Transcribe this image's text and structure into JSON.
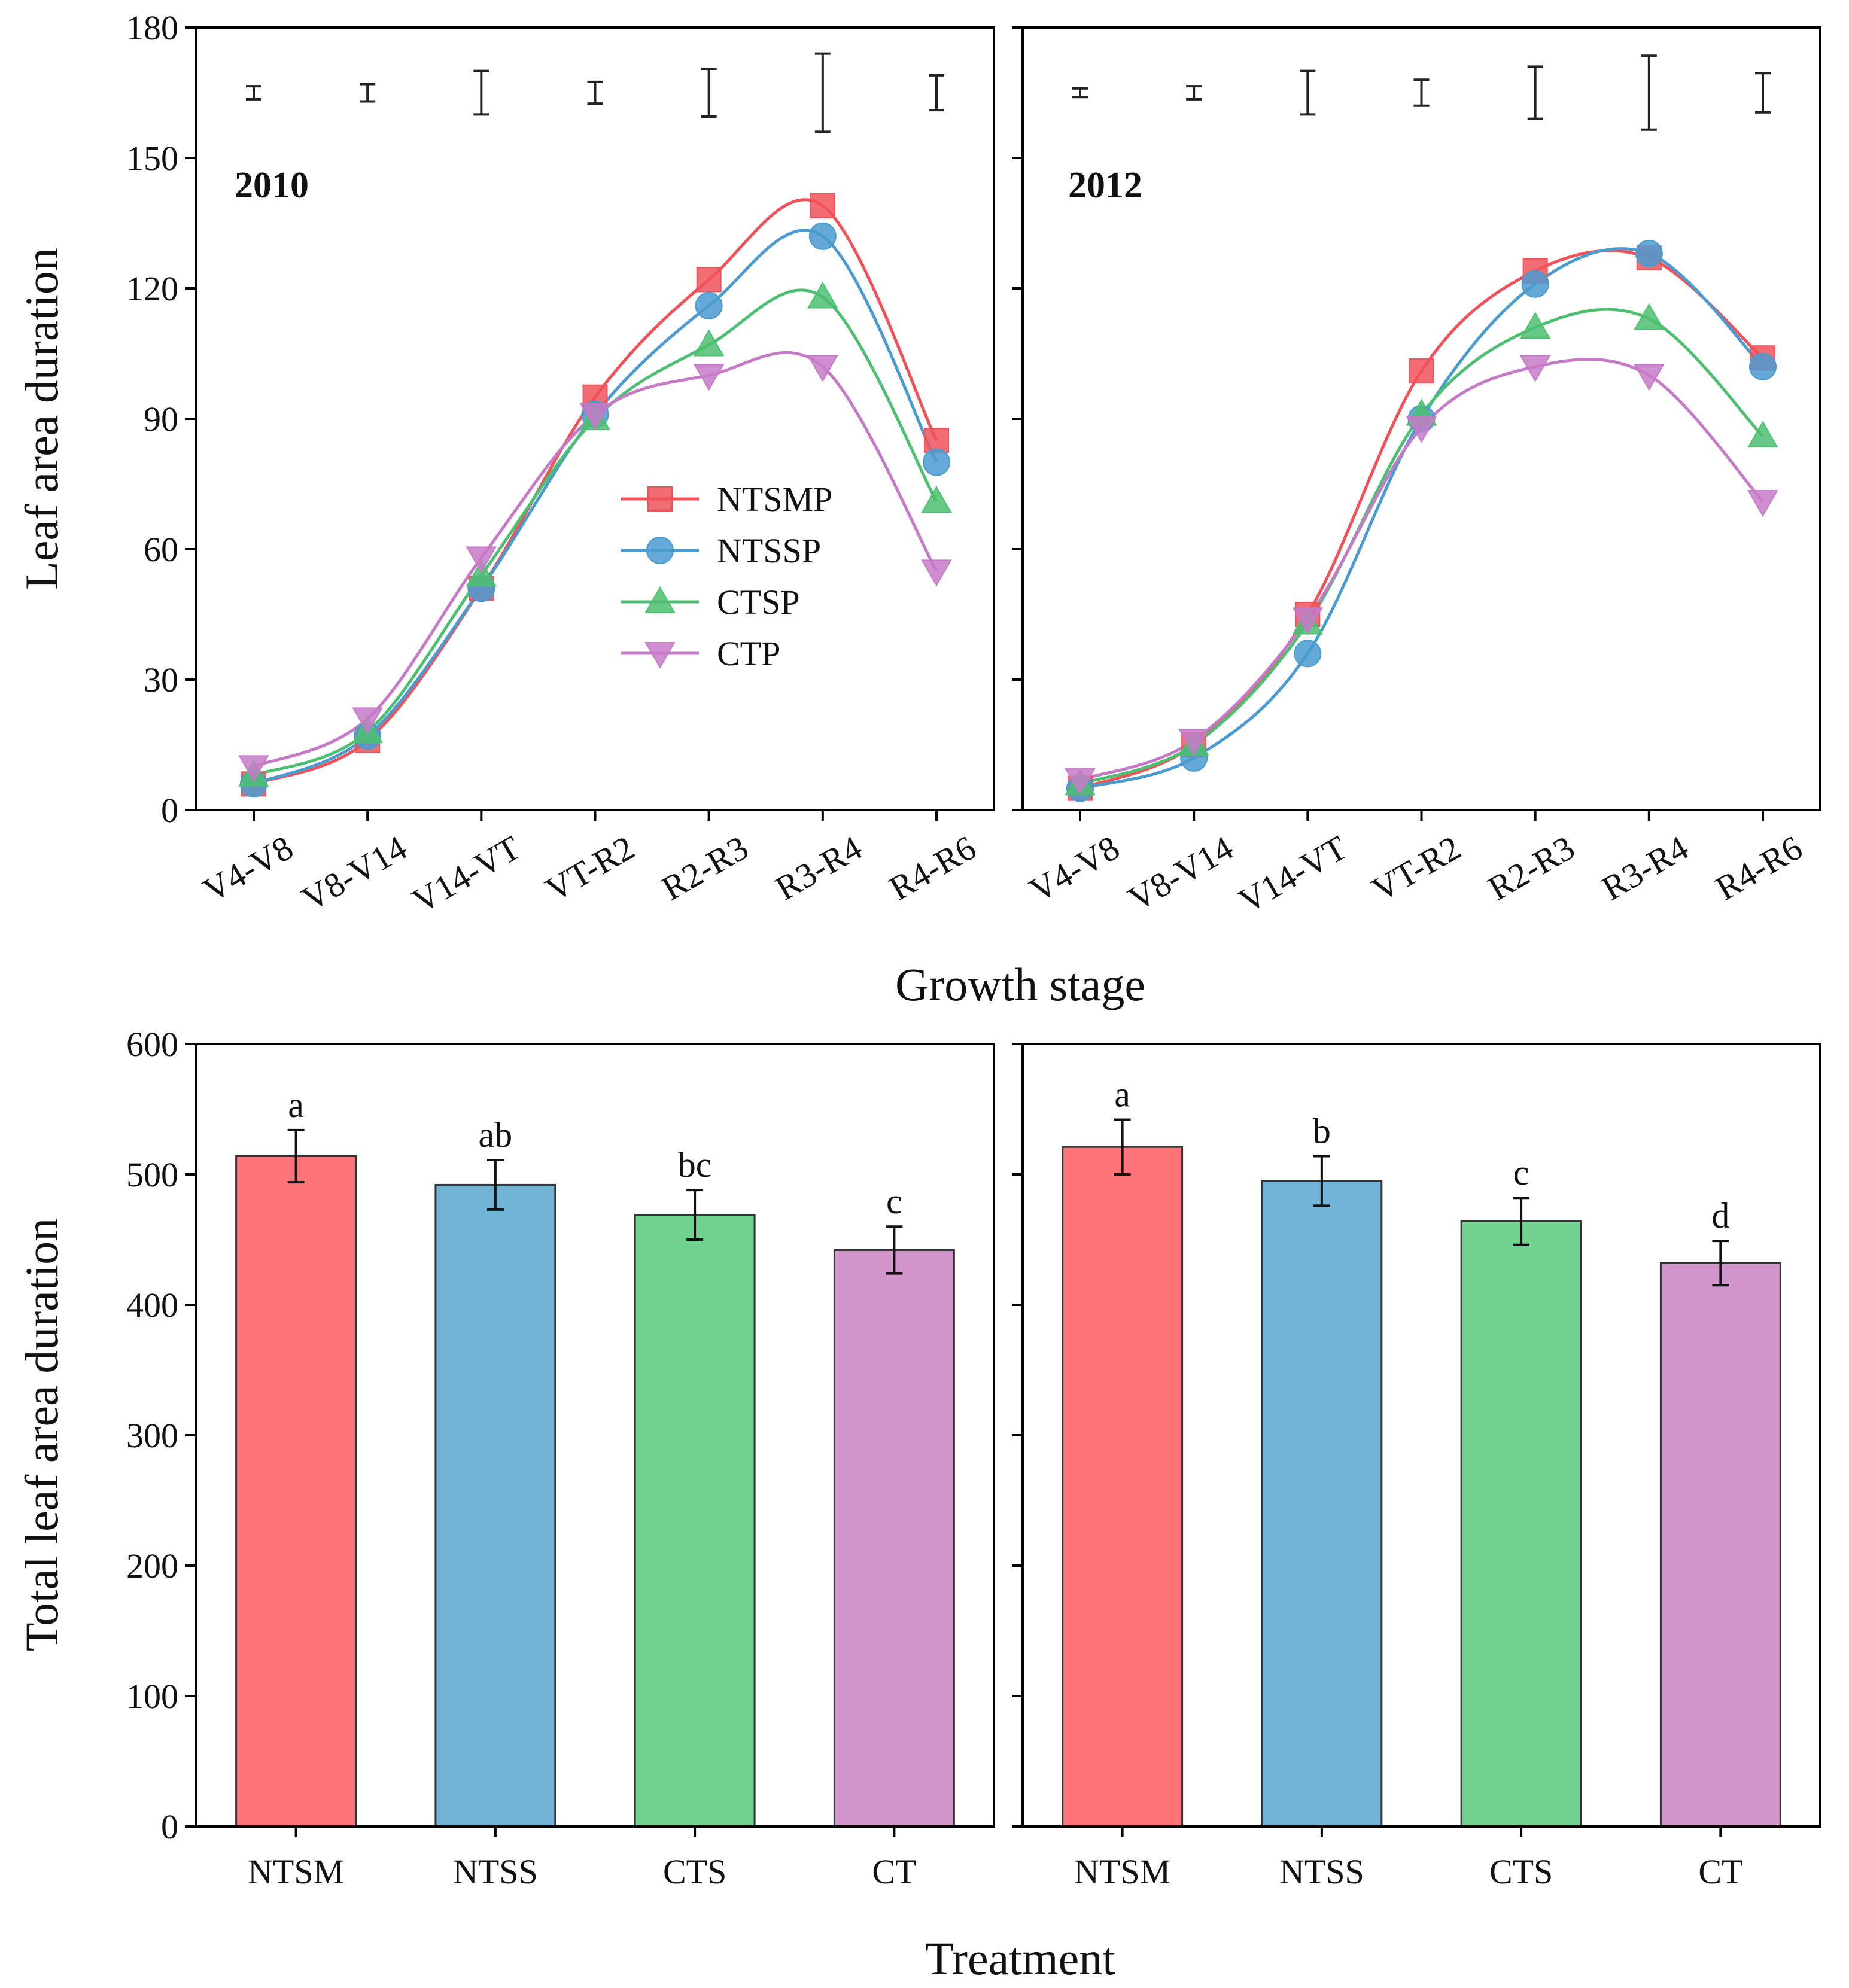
{
  "chart_data": [
    {
      "id": "lad_2010",
      "type": "line",
      "panel_label": "2010",
      "ylabel": "Leaf area duration",
      "xlabel": "Growth stage",
      "ylim": [
        0,
        180
      ],
      "yticks": [
        0,
        30,
        60,
        90,
        120,
        150,
        180
      ],
      "categories": [
        "V4-V8",
        "V8-V14",
        "V14-VT",
        "VT-R2",
        "R2-R3",
        "R3-R4",
        "R4-R6"
      ],
      "series": [
        {
          "name": "NTSMP",
          "marker": "square",
          "color": "#f0525a",
          "values": [
            6,
            16,
            51,
            95,
            122,
            139,
            85
          ]
        },
        {
          "name": "NTSSP",
          "marker": "circle",
          "color": "#4a9bd0",
          "values": [
            6,
            17,
            51,
            91,
            116,
            132,
            80
          ]
        },
        {
          "name": "CTSP",
          "marker": "triangle-up",
          "color": "#4cc070",
          "values": [
            8,
            18,
            54,
            90,
            107,
            118,
            71
          ]
        },
        {
          "name": "CTP",
          "marker": "triangle-down",
          "color": "#c57ac8",
          "values": [
            10,
            21,
            58,
            91,
            100,
            102,
            55
          ]
        }
      ],
      "error_bars": [
        {
          "center": 165,
          "half": 1.5
        },
        {
          "center": 165,
          "half": 2.0
        },
        {
          "center": 165,
          "half": 5.0
        },
        {
          "center": 165,
          "half": 2.5
        },
        {
          "center": 165,
          "half": 5.5
        },
        {
          "center": 165,
          "half": 9.0
        },
        {
          "center": 165,
          "half": 4.0
        }
      ],
      "legend": {
        "position": "center",
        "entries": [
          "NTSMP",
          "NTSSP",
          "CTSP",
          "CTP"
        ]
      }
    },
    {
      "id": "lad_2012",
      "type": "line",
      "panel_label": "2012",
      "ylim": [
        0,
        180
      ],
      "categories": [
        "V4-V8",
        "V8-V14",
        "V14-VT",
        "VT-R2",
        "R2-R3",
        "R3-R4",
        "R4-R6"
      ],
      "series": [
        {
          "name": "NTSMP",
          "marker": "square",
          "color": "#f0525a",
          "values": [
            5,
            15,
            45,
            101,
            124,
            127,
            104
          ]
        },
        {
          "name": "NTSSP",
          "marker": "circle",
          "color": "#4a9bd0",
          "values": [
            5,
            12,
            36,
            90,
            121,
            128,
            102
          ]
        },
        {
          "name": "CTSP",
          "marker": "triangle-up",
          "color": "#4cc070",
          "values": [
            6,
            15,
            43,
            91,
            111,
            113,
            86
          ]
        },
        {
          "name": "CTP",
          "marker": "triangle-down",
          "color": "#c57ac8",
          "values": [
            7,
            16,
            44,
            88,
            102,
            100,
            71
          ]
        }
      ],
      "error_bars": [
        {
          "center": 165,
          "half": 1.0
        },
        {
          "center": 165,
          "half": 1.5
        },
        {
          "center": 165,
          "half": 5.0
        },
        {
          "center": 165,
          "half": 3.0
        },
        {
          "center": 165,
          "half": 6.0
        },
        {
          "center": 165,
          "half": 8.5
        },
        {
          "center": 165,
          "half": 4.5
        }
      ]
    },
    {
      "id": "tlad_2010",
      "type": "bar",
      "ylabel": "Total leaf area duration",
      "xlabel": "Treatment",
      "ylim": [
        0,
        600
      ],
      "yticks": [
        0,
        100,
        200,
        300,
        400,
        500,
        600
      ],
      "categories": [
        "NTSM",
        "NTSS",
        "CTS",
        "CT"
      ],
      "values": [
        514,
        492,
        469,
        442
      ],
      "errors": [
        20,
        19,
        19,
        18
      ],
      "letters": [
        "a",
        "ab",
        "bc",
        "c"
      ],
      "colors": [
        "#ff7479",
        "#71b4d8",
        "#72d290",
        "#d295cc"
      ]
    },
    {
      "id": "tlad_2012",
      "type": "bar",
      "ylim": [
        0,
        600
      ],
      "categories": [
        "NTSM",
        "NTSS",
        "CTS",
        "CT"
      ],
      "values": [
        521,
        495,
        464,
        432
      ],
      "errors": [
        21,
        19,
        18,
        17
      ],
      "letters": [
        "a",
        "b",
        "c",
        "d"
      ],
      "colors": [
        "#ff7479",
        "#71b4d8",
        "#72d290",
        "#d295cc"
      ]
    }
  ]
}
